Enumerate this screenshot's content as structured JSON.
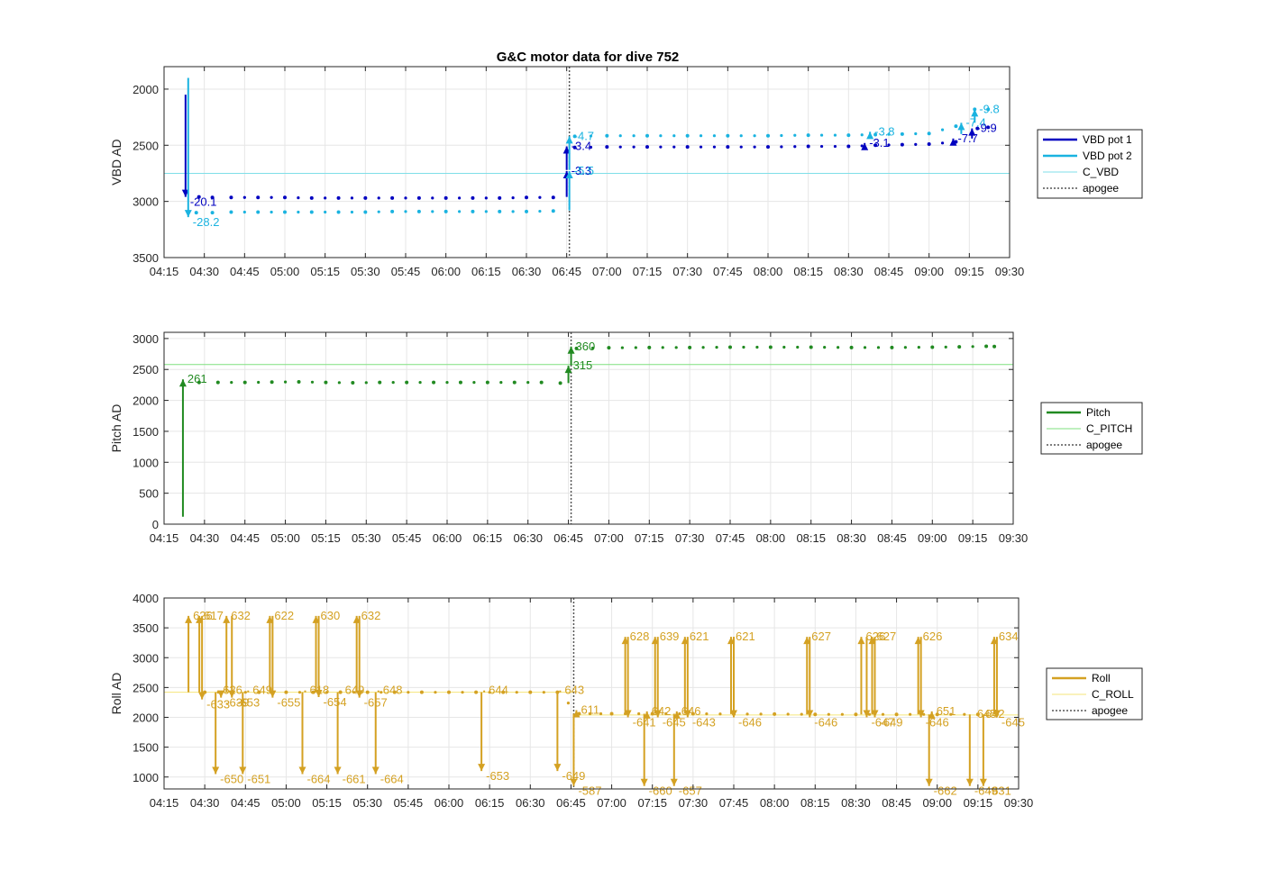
{
  "figure": {
    "title": "G&C motor data for dive 752"
  },
  "colors": {
    "vbd1": "#0000c0",
    "vbd2": "#1ab3e0",
    "c_vbd": "#7fdfe8",
    "pitch": "#218a21",
    "c_pitch": "#7fe07f",
    "roll": "#d4a122",
    "c_roll": "#f5e67a",
    "apogee": "#555555",
    "grid": "#e6e6e6"
  },
  "x_ticks": [
    "04:15",
    "04:30",
    "04:45",
    "05:00",
    "05:15",
    "05:30",
    "05:45",
    "06:00",
    "06:15",
    "06:30",
    "06:45",
    "07:00",
    "07:15",
    "07:30",
    "07:45",
    "08:00",
    "08:15",
    "08:30",
    "08:45",
    "09:00",
    "09:15",
    "09:30"
  ],
  "chart_data": [
    {
      "type": "line",
      "id": "vbd",
      "title": "G&C motor data for dive 752",
      "ylabel": "VBD AD",
      "xlim": [
        "04:15",
        "09:30"
      ],
      "ylim": [
        3500,
        1800
      ],
      "y_reversed": true,
      "yticks": [
        2000,
        2500,
        3000,
        3500
      ],
      "grid": true,
      "legend_placement": "right",
      "legend": [
        {
          "label": "VBD pot 1",
          "style": "thick",
          "color_key": "vbd1"
        },
        {
          "label": "VBD pot 2",
          "style": "thick",
          "color_key": "vbd2"
        },
        {
          "label": "C_VBD",
          "style": "thin",
          "color_key": "c_vbd"
        },
        {
          "label": "apogee",
          "style": "dotted",
          "color_key": "apogee"
        }
      ],
      "apogee": "06:46",
      "reference_lines": [
        {
          "name": "C_VBD",
          "y": 2750,
          "color_key": "c_vbd"
        }
      ],
      "series": [
        {
          "name": "VBD pot 1",
          "color_key": "vbd1",
          "x": [
            "04:28",
            "04:33",
            "04:40",
            "04:50",
            "05:00",
            "05:10",
            "05:20",
            "05:30",
            "05:40",
            "05:50",
            "06:00",
            "06:10",
            "06:20",
            "06:30",
            "06:40",
            "06:48",
            "07:00",
            "07:15",
            "07:30",
            "07:45",
            "08:00",
            "08:15",
            "08:30",
            "08:40",
            "08:50",
            "09:00",
            "09:10",
            "09:18",
            "09:22"
          ],
          "y": [
            2960,
            2965,
            2965,
            2965,
            2965,
            2970,
            2970,
            2970,
            2970,
            2970,
            2970,
            2970,
            2970,
            2965,
            2965,
            2520,
            2515,
            2515,
            2515,
            2515,
            2515,
            2510,
            2510,
            2500,
            2495,
            2490,
            2470,
            2350,
            2340
          ]
        },
        {
          "name": "VBD pot 2",
          "color_key": "vbd2",
          "x": [
            "04:27",
            "04:33",
            "04:40",
            "04:50",
            "05:00",
            "05:10",
            "05:20",
            "05:30",
            "05:40",
            "05:50",
            "06:00",
            "06:10",
            "06:20",
            "06:30",
            "06:40",
            "06:48",
            "07:00",
            "07:15",
            "07:30",
            "07:45",
            "08:00",
            "08:15",
            "08:30",
            "08:40",
            "08:50",
            "09:00",
            "09:10",
            "09:17",
            "09:22"
          ],
          "y": [
            3100,
            3100,
            3095,
            3095,
            3095,
            3095,
            3095,
            3095,
            3090,
            3090,
            3090,
            3090,
            3090,
            3090,
            3085,
            2420,
            2415,
            2415,
            2415,
            2415,
            2415,
            2410,
            2410,
            2405,
            2400,
            2395,
            2330,
            2180,
            2180
          ]
        }
      ],
      "moves": [
        {
          "series": "VBD pot 1",
          "x": "04:23",
          "y_from": 2050,
          "y_to": 2960,
          "label": "-20.1"
        },
        {
          "series": "VBD pot 2",
          "x": "04:24",
          "y_from": 1900,
          "y_to": 3140,
          "label": "-28.2"
        },
        {
          "series": "VBD pot 1",
          "x": "06:45",
          "y_from": 2960,
          "y_to": 2730,
          "label": "-3.3"
        },
        {
          "series": "VBD pot 1",
          "x": "06:45",
          "y_from": 2720,
          "y_to": 2510,
          "label": "-3.4"
        },
        {
          "series": "VBD pot 2",
          "x": "06:46",
          "y_from": 3080,
          "y_to": 2730,
          "label": "-5.5"
        },
        {
          "series": "VBD pot 2",
          "x": "06:46",
          "y_from": 2720,
          "y_to": 2420,
          "label": "-4.7"
        },
        {
          "series": "VBD pot 1",
          "x": "08:36",
          "y_from": 2510,
          "y_to": 2480,
          "label": "-3.1"
        },
        {
          "series": "VBD pot 2",
          "x": "08:38",
          "y_from": 2410,
          "y_to": 2380,
          "label": "-3.8"
        },
        {
          "series": "VBD pot 1",
          "x": "09:09",
          "y_from": 2480,
          "y_to": 2440,
          "label": "-7.7"
        },
        {
          "series": "VBD pot 2",
          "x": "09:12",
          "y_from": 2400,
          "y_to": 2300,
          "label": "-7.4"
        },
        {
          "series": "VBD pot 1",
          "x": "09:16",
          "y_from": 2440,
          "y_to": 2350,
          "label": "-9.9"
        },
        {
          "series": "VBD pot 2",
          "x": "09:17",
          "y_from": 2300,
          "y_to": 2180,
          "label": "-9.8"
        }
      ]
    },
    {
      "type": "line",
      "id": "pitch",
      "ylabel": "Pitch AD",
      "xlim": [
        "04:15",
        "09:30"
      ],
      "ylim": [
        0,
        3100
      ],
      "yticks": [
        0,
        500,
        1000,
        1500,
        2000,
        2500,
        3000
      ],
      "grid": true,
      "legend_placement": "right",
      "legend": [
        {
          "label": "Pitch",
          "style": "thick",
          "color_key": "pitch"
        },
        {
          "label": "C_PITCH",
          "style": "thin",
          "color_key": "c_pitch"
        },
        {
          "label": "apogee",
          "style": "dotted",
          "color_key": "apogee"
        }
      ],
      "apogee": "06:46",
      "reference_lines": [
        {
          "name": "C_PITCH",
          "y": 2580,
          "color_key": "c_pitch"
        }
      ],
      "series": [
        {
          "name": "Pitch",
          "color_key": "pitch",
          "x": [
            "04:28",
            "04:35",
            "04:45",
            "04:55",
            "05:05",
            "05:15",
            "05:25",
            "05:35",
            "05:45",
            "05:55",
            "06:05",
            "06:15",
            "06:25",
            "06:35",
            "06:42",
            "06:48",
            "07:00",
            "07:15",
            "07:30",
            "07:45",
            "08:00",
            "08:15",
            "08:30",
            "08:45",
            "09:00",
            "09:10",
            "09:20",
            "09:23"
          ],
          "y": [
            2290,
            2290,
            2290,
            2295,
            2300,
            2290,
            2285,
            2290,
            2290,
            2290,
            2290,
            2290,
            2290,
            2290,
            2280,
            2840,
            2850,
            2855,
            2855,
            2860,
            2860,
            2860,
            2855,
            2855,
            2860,
            2865,
            2875,
            2870
          ]
        }
      ],
      "moves": [
        {
          "series": "Pitch",
          "x": "04:22",
          "y_from": 120,
          "y_to": 2340,
          "label": "261"
        },
        {
          "series": "Pitch",
          "x": "06:45",
          "y_from": 2280,
          "y_to": 2560,
          "label": "315"
        },
        {
          "series": "Pitch",
          "x": "06:46",
          "y_from": 2570,
          "y_to": 2870,
          "label": "360"
        }
      ]
    },
    {
      "type": "line",
      "id": "roll",
      "ylabel": "Roll AD",
      "xlim": [
        "04:15",
        "09:30"
      ],
      "ylim": [
        800,
        4000
      ],
      "yticks": [
        1000,
        1500,
        2000,
        2500,
        3000,
        3500,
        4000
      ],
      "grid": true,
      "legend_placement": "right",
      "legend": [
        {
          "label": "Roll",
          "style": "thick",
          "color_key": "roll"
        },
        {
          "label": "C_ROLL",
          "style": "thin",
          "color_key": "c_roll"
        },
        {
          "label": "apogee",
          "style": "dotted",
          "color_key": "apogee"
        }
      ],
      "apogee": "06:46",
      "reference_lines": [
        {
          "name": "C_ROLL",
          "y": 2420,
          "x_range": [
            "04:15",
            "06:46"
          ],
          "color_key": "c_roll"
        },
        {
          "name": "C_ROLL",
          "y": 2040,
          "x_range": [
            "06:46",
            "09:30"
          ],
          "color_key": "c_roll"
        }
      ],
      "series": [
        {
          "name": "Roll",
          "color_key": "roll",
          "x": [
            "04:30",
            "04:40",
            "04:50",
            "05:00",
            "05:10",
            "05:20",
            "05:30",
            "05:40",
            "05:50",
            "06:00",
            "06:10",
            "06:20",
            "06:30",
            "06:40",
            "06:48",
            "07:00",
            "07:15",
            "07:30",
            "07:45",
            "08:00",
            "08:15",
            "08:30",
            "08:45",
            "09:00",
            "09:15",
            "09:22"
          ],
          "y": [
            2420,
            2420,
            2420,
            2420,
            2420,
            2420,
            2420,
            2420,
            2420,
            2420,
            2420,
            2420,
            2420,
            2420,
            2060,
            2060,
            2060,
            2060,
            2055,
            2055,
            2050,
            2050,
            2050,
            2050,
            2050,
            2050
          ]
        }
      ],
      "moves": [
        {
          "x": "04:24",
          "y_from": 2420,
          "y_to": 3700,
          "label": "626"
        },
        {
          "x": "04:28",
          "y_from": 2420,
          "y_to": 3700,
          "label": "617"
        },
        {
          "x": "04:29",
          "y_from": 3700,
          "y_to": 2300,
          "label": "-633"
        },
        {
          "x": "04:35",
          "y_from": 2420,
          "y_to": 2450,
          "label": "626"
        },
        {
          "x": "04:34",
          "y_from": 2420,
          "y_to": 1050,
          "label": "-650"
        },
        {
          "x": "04:36",
          "y_from": 2420,
          "y_to": 2330,
          "label": "-639"
        },
        {
          "x": "04:38",
          "y_from": 2420,
          "y_to": 3700,
          "label": "632"
        },
        {
          "x": "04:40",
          "y_from": 3700,
          "y_to": 2330,
          "label": "-653"
        },
        {
          "x": "04:46",
          "y_from": 2420,
          "y_to": 2450,
          "label": "649"
        },
        {
          "x": "04:44",
          "y_from": 2420,
          "y_to": 1050,
          "label": "-651"
        },
        {
          "x": "04:54",
          "y_from": 2420,
          "y_to": 3700,
          "label": "622"
        },
        {
          "x": "04:55",
          "y_from": 3700,
          "y_to": 2330,
          "label": "-655"
        },
        {
          "x": "05:07",
          "y_from": 2420,
          "y_to": 2450,
          "label": "618"
        },
        {
          "x": "05:06",
          "y_from": 2420,
          "y_to": 1050,
          "label": "-664"
        },
        {
          "x": "05:11",
          "y_from": 2420,
          "y_to": 3700,
          "label": "630"
        },
        {
          "x": "05:12",
          "y_from": 3700,
          "y_to": 2340,
          "label": "-654"
        },
        {
          "x": "05:20",
          "y_from": 2420,
          "y_to": 2450,
          "label": "649"
        },
        {
          "x": "05:19",
          "y_from": 2420,
          "y_to": 1050,
          "label": "-661"
        },
        {
          "x": "05:26",
          "y_from": 2420,
          "y_to": 3700,
          "label": "632"
        },
        {
          "x": "05:27",
          "y_from": 3700,
          "y_to": 2330,
          "label": "-657"
        },
        {
          "x": "05:34",
          "y_from": 2420,
          "y_to": 2450,
          "label": "648"
        },
        {
          "x": "05:33",
          "y_from": 2420,
          "y_to": 1050,
          "label": "-664"
        },
        {
          "x": "06:13",
          "y_from": 2420,
          "y_to": 2450,
          "label": "644"
        },
        {
          "x": "06:12",
          "y_from": 2420,
          "y_to": 1100,
          "label": "-653"
        },
        {
          "x": "06:41",
          "y_from": 2420,
          "y_to": 2450,
          "label": "643"
        },
        {
          "x": "06:40",
          "y_from": 2420,
          "y_to": 1100,
          "label": "-649"
        },
        {
          "x": "06:47",
          "y_from": 2060,
          "y_to": 2120,
          "label": "611"
        },
        {
          "x": "06:46",
          "y_from": 2060,
          "y_to": 850,
          "label": "-587"
        },
        {
          "x": "07:05",
          "y_from": 2060,
          "y_to": 3350,
          "label": "628"
        },
        {
          "x": "07:06",
          "y_from": 3350,
          "y_to": 2000,
          "label": "-641"
        },
        {
          "x": "07:13",
          "y_from": 2060,
          "y_to": 2100,
          "label": "642"
        },
        {
          "x": "07:12",
          "y_from": 2060,
          "y_to": 850,
          "label": "-660"
        },
        {
          "x": "07:16",
          "y_from": 2060,
          "y_to": 3350,
          "label": "639"
        },
        {
          "x": "07:17",
          "y_from": 3350,
          "y_to": 2000,
          "label": "-645"
        },
        {
          "x": "07:24",
          "y_from": 2060,
          "y_to": 2100,
          "label": "646"
        },
        {
          "x": "07:23",
          "y_from": 2060,
          "y_to": 850,
          "label": "-657"
        },
        {
          "x": "07:27",
          "y_from": 2060,
          "y_to": 3350,
          "label": "621"
        },
        {
          "x": "07:28",
          "y_from": 3350,
          "y_to": 2000,
          "label": "-643"
        },
        {
          "x": "07:44",
          "y_from": 2055,
          "y_to": 3350,
          "label": "621"
        },
        {
          "x": "07:45",
          "y_from": 3350,
          "y_to": 2000,
          "label": "-646"
        },
        {
          "x": "08:12",
          "y_from": 2050,
          "y_to": 3350,
          "label": "627"
        },
        {
          "x": "08:13",
          "y_from": 3350,
          "y_to": 2000,
          "label": "-646"
        },
        {
          "x": "08:32",
          "y_from": 2050,
          "y_to": 3350,
          "label": "626"
        },
        {
          "x": "08:34",
          "y_from": 3350,
          "y_to": 2000,
          "label": "-647"
        },
        {
          "x": "08:36",
          "y_from": 2050,
          "y_to": 3350,
          "label": "627"
        },
        {
          "x": "08:37",
          "y_from": 3350,
          "y_to": 2000,
          "label": "-649"
        },
        {
          "x": "08:53",
          "y_from": 2050,
          "y_to": 3350,
          "label": "626"
        },
        {
          "x": "08:54",
          "y_from": 3350,
          "y_to": 2000,
          "label": "-646"
        },
        {
          "x": "08:58",
          "y_from": 2050,
          "y_to": 2100,
          "label": "651"
        },
        {
          "x": "08:57",
          "y_from": 2050,
          "y_to": 850,
          "label": "-662"
        },
        {
          "x": "09:13",
          "y_from": 2050,
          "y_to": 2050,
          "label": "645"
        },
        {
          "x": "09:12",
          "y_from": 2050,
          "y_to": 850,
          "label": "-649"
        },
        {
          "x": "09:16",
          "y_from": 2050,
          "y_to": 2050,
          "label": "642"
        },
        {
          "x": "09:17",
          "y_from": 2050,
          "y_to": 850,
          "label": "-631"
        },
        {
          "x": "09:21",
          "y_from": 2050,
          "y_to": 3350,
          "label": "634"
        },
        {
          "x": "09:22",
          "y_from": 3350,
          "y_to": 2000,
          "label": "-645"
        }
      ]
    }
  ]
}
